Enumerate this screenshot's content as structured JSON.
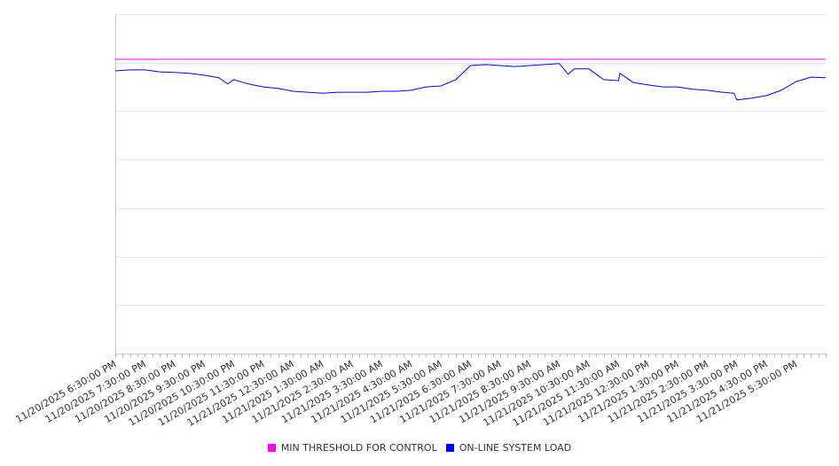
{
  "chart_data": {
    "type": "line",
    "title": "",
    "xlabel": "",
    "ylabel": "",
    "xlim": [
      0,
      24
    ],
    "ylim": [
      0,
      700
    ],
    "grid": true,
    "legend_position": "bottom",
    "x_tick_labels": [
      "11/20/2025 6:30:00 PM",
      "11/20/2025 7:30:00 PM",
      "11/20/2025 8:30:00 PM",
      "11/20/2025 9:30:00 PM",
      "11/20/2025 10:30:00 PM",
      "11/20/2025 11:30:00 PM",
      "11/21/2025 12:30:00 AM",
      "11/21/2025 1:30:00 AM",
      "11/21/2025 2:30:00 AM",
      "11/21/2025 3:30:00 AM",
      "11/21/2025 4:30:00 AM",
      "11/21/2025 5:30:00 AM",
      "11/21/2025 6:30:00 AM",
      "11/21/2025 7:30:00 AM",
      "11/21/2025 8:30:00 AM",
      "11/21/2025 9:30:00 AM",
      "11/21/2025 10:30:00 AM",
      "11/21/2025 11:30:00 AM",
      "11/21/2025 12:30:00 PM",
      "11/21/2025 1:30:00 PM",
      "11/21/2025 2:30:00 PM",
      "11/21/2025 3:30:00 PM",
      "11/21/2025 4:30:00 PM",
      "11/21/2025 5:30:00 PM"
    ],
    "series": [
      {
        "name": "MIN THRESHOLD FOR CONTROL",
        "color": "#ff00ff",
        "x": [
          0,
          24
        ],
        "y": [
          607,
          607
        ]
      },
      {
        "name": "ON-LINE SYSTEM LOAD",
        "color": "#0000ff",
        "x": [
          0,
          0.5,
          1,
          1.5,
          2,
          2.5,
          3,
          3.5,
          3.8,
          4,
          4.5,
          5,
          5.5,
          6,
          6.5,
          7,
          7.5,
          8,
          8.5,
          9,
          9.5,
          10,
          10.5,
          11,
          11.5,
          12,
          12.5,
          13,
          13.5,
          14,
          14.5,
          15,
          15.3,
          15.5,
          16,
          16.5,
          17,
          17.05,
          17.5,
          18,
          18.5,
          19,
          19.5,
          20,
          20.5,
          20.9,
          21,
          21.5,
          22,
          22.5,
          23,
          23.5,
          24
        ],
        "y": [
          583,
          585,
          585,
          581,
          580,
          578,
          574,
          569,
          556,
          565,
          556,
          550,
          547,
          541,
          539,
          537,
          539,
          539,
          539,
          541,
          541,
          543,
          550,
          552,
          565,
          594,
          596,
          594,
          592,
          594,
          596,
          598,
          576,
          587,
          587,
          565,
          563,
          578,
          559,
          554,
          550,
          550,
          545,
          543,
          539,
          537,
          523,
          527,
          532,
          543,
          561,
          570,
          569
        ]
      }
    ]
  }
}
